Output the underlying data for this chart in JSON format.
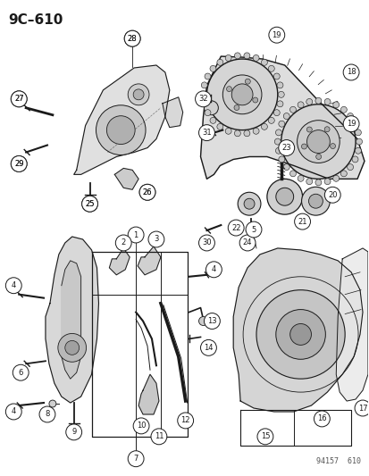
{
  "title": "9C–610",
  "bg_color": "#ffffff",
  "diagram_color": "#1a1a1a",
  "watermark": "94157  610",
  "fig_width": 4.14,
  "fig_height": 5.33,
  "dpi": 100
}
